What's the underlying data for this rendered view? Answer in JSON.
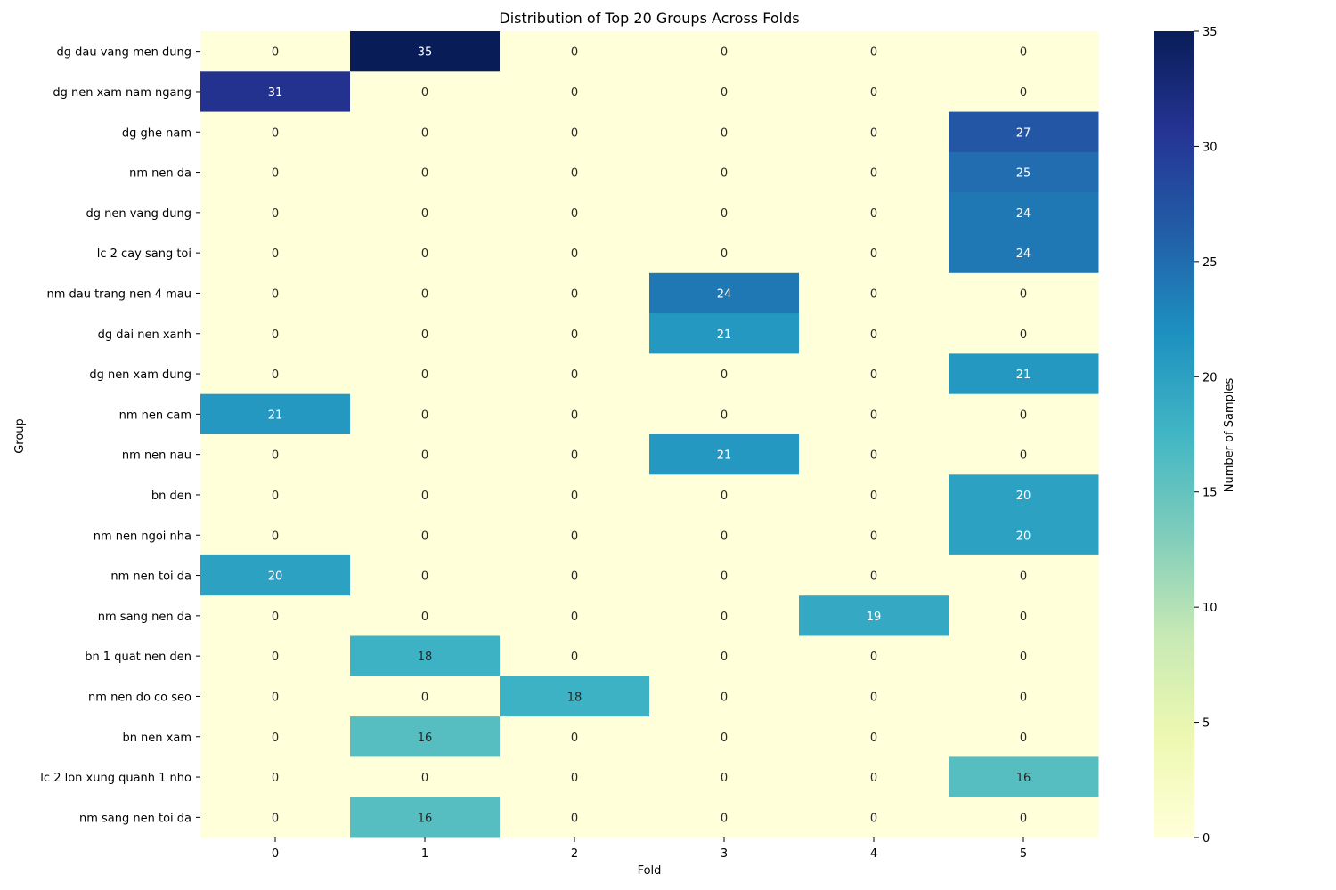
{
  "chart_data": {
    "type": "heatmap",
    "title": "Distribution of Top 20 Groups Across Folds",
    "xlabel": "Fold",
    "ylabel": "Group",
    "colorbar_label": "Number of Samples",
    "colormap": "YlGnBu",
    "vmin": 0,
    "vmax": 35,
    "colorbar_ticks": [
      0,
      5,
      10,
      15,
      20,
      25,
      30,
      35
    ],
    "x_categories": [
      "0",
      "1",
      "2",
      "3",
      "4",
      "5"
    ],
    "y_categories": [
      "dg dau vang men dung",
      "dg nen xam nam ngang",
      "dg ghe nam",
      "nm nen da",
      "dg nen vang dung",
      "lc 2 cay sang toi",
      "nm dau trang nen 4 mau",
      "dg dai nen xanh",
      "dg nen xam dung",
      "nm nen cam",
      "nm nen nau",
      "bn den",
      "nm nen ngoi nha",
      "nm nen toi da",
      "nm sang nen da",
      "bn 1 quat nen den",
      "nm nen do co seo",
      "bn nen xam",
      "lc 2 lon xung quanh 1 nho",
      "nm sang nen toi da"
    ],
    "values": [
      [
        0,
        35,
        0,
        0,
        0,
        0
      ],
      [
        31,
        0,
        0,
        0,
        0,
        0
      ],
      [
        0,
        0,
        0,
        0,
        0,
        27
      ],
      [
        0,
        0,
        0,
        0,
        0,
        25
      ],
      [
        0,
        0,
        0,
        0,
        0,
        24
      ],
      [
        0,
        0,
        0,
        0,
        0,
        24
      ],
      [
        0,
        0,
        0,
        24,
        0,
        0
      ],
      [
        0,
        0,
        0,
        21,
        0,
        0
      ],
      [
        0,
        0,
        0,
        0,
        0,
        21
      ],
      [
        21,
        0,
        0,
        0,
        0,
        0
      ],
      [
        0,
        0,
        0,
        21,
        0,
        0
      ],
      [
        0,
        0,
        0,
        0,
        0,
        20
      ],
      [
        0,
        0,
        0,
        0,
        0,
        20
      ],
      [
        20,
        0,
        0,
        0,
        0,
        0
      ],
      [
        0,
        0,
        0,
        0,
        19,
        0
      ],
      [
        0,
        18,
        0,
        0,
        0,
        0
      ],
      [
        0,
        0,
        18,
        0,
        0,
        0
      ],
      [
        0,
        16,
        0,
        0,
        0,
        0
      ],
      [
        0,
        0,
        0,
        0,
        0,
        16
      ],
      [
        0,
        16,
        0,
        0,
        0,
        0
      ]
    ],
    "grid": false,
    "legend": "colorbar-right"
  }
}
